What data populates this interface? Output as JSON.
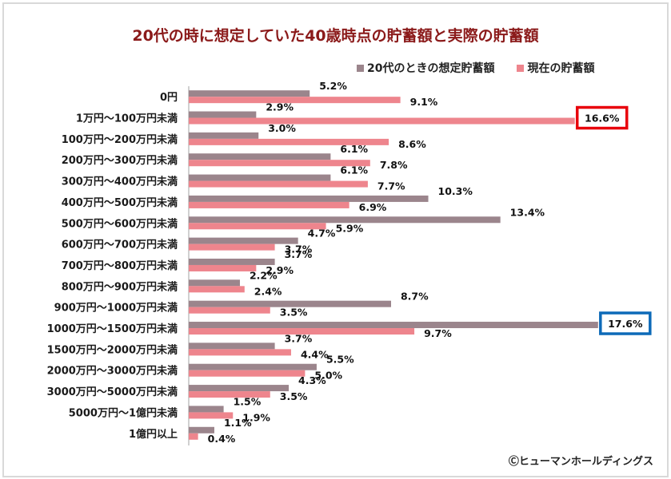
{
  "colors": {
    "assumed": "#9b858c",
    "actual": "#ee858d",
    "highlight_red": "#e8000b",
    "highlight_blue": "#0d6ab8",
    "title": "#8b1a1a"
  },
  "copyright": "Ⓒヒューマンホールディングス",
  "chart_data": {
    "type": "bar",
    "orientation": "horizontal",
    "title": "20代の時に想定していた40歳時点の貯蓄額と実際の貯蓄額",
    "xlabel": "",
    "ylabel": "",
    "xlim": [
      0,
      17.6
    ],
    "grid": false,
    "legend_position": "top-right",
    "categories": [
      "0円",
      "1万円～100万円未満",
      "100万円～200万円未満",
      "200万円～300万円未満",
      "300万円～400万円未満",
      "400万円～500万円未満",
      "500万円～600万円未満",
      "600万円～700万円未満",
      "700万円～800万円未満",
      "800万円～900万円未満",
      "900万円～1000万円未満",
      "1000万円～1500万円未満",
      "1500万円～2000万円未満",
      "2000万円～3000万円未満",
      "3000万円～5000万円未満",
      "5000万円～1億円未満",
      "1億円以上"
    ],
    "series": [
      {
        "name": "20代のときの想定貯蓄額",
        "values": [
          5.2,
          2.9,
          3.0,
          6.1,
          6.1,
          10.3,
          13.4,
          4.7,
          3.7,
          2.2,
          8.7,
          17.6,
          3.7,
          5.5,
          4.3,
          1.5,
          1.1
        ],
        "labels": [
          "5.2%",
          "2.9%",
          "3.0%",
          "6.1%",
          "6.1%",
          "10.3%",
          "13.4%",
          "4.7%",
          "3.7%",
          "2.2%",
          "8.7%",
          "17.6%",
          "3.7%",
          "5.5%",
          "4.3%",
          "1.5%",
          "1.1%"
        ]
      },
      {
        "name": "現在の貯蓄額",
        "values": [
          9.1,
          16.6,
          8.6,
          7.8,
          7.7,
          6.9,
          5.9,
          3.7,
          2.9,
          2.4,
          3.5,
          9.7,
          4.4,
          5.0,
          3.5,
          1.9,
          0.4
        ],
        "labels": [
          "9.1%",
          "16.6%",
          "8.6%",
          "7.8%",
          "7.7%",
          "6.9%",
          "5.9%",
          "3.7%",
          "2.9%",
          "2.4%",
          "3.5%",
          "9.7%",
          "4.4%",
          "5.0%",
          "3.5%",
          "1.9%",
          "0.4%"
        ]
      }
    ],
    "annotations": [
      {
        "series": 1,
        "category": "1万円～100万円未満",
        "style": "red-box"
      },
      {
        "series": 0,
        "category": "1000万円～1500万円未満",
        "style": "blue-box"
      }
    ]
  }
}
